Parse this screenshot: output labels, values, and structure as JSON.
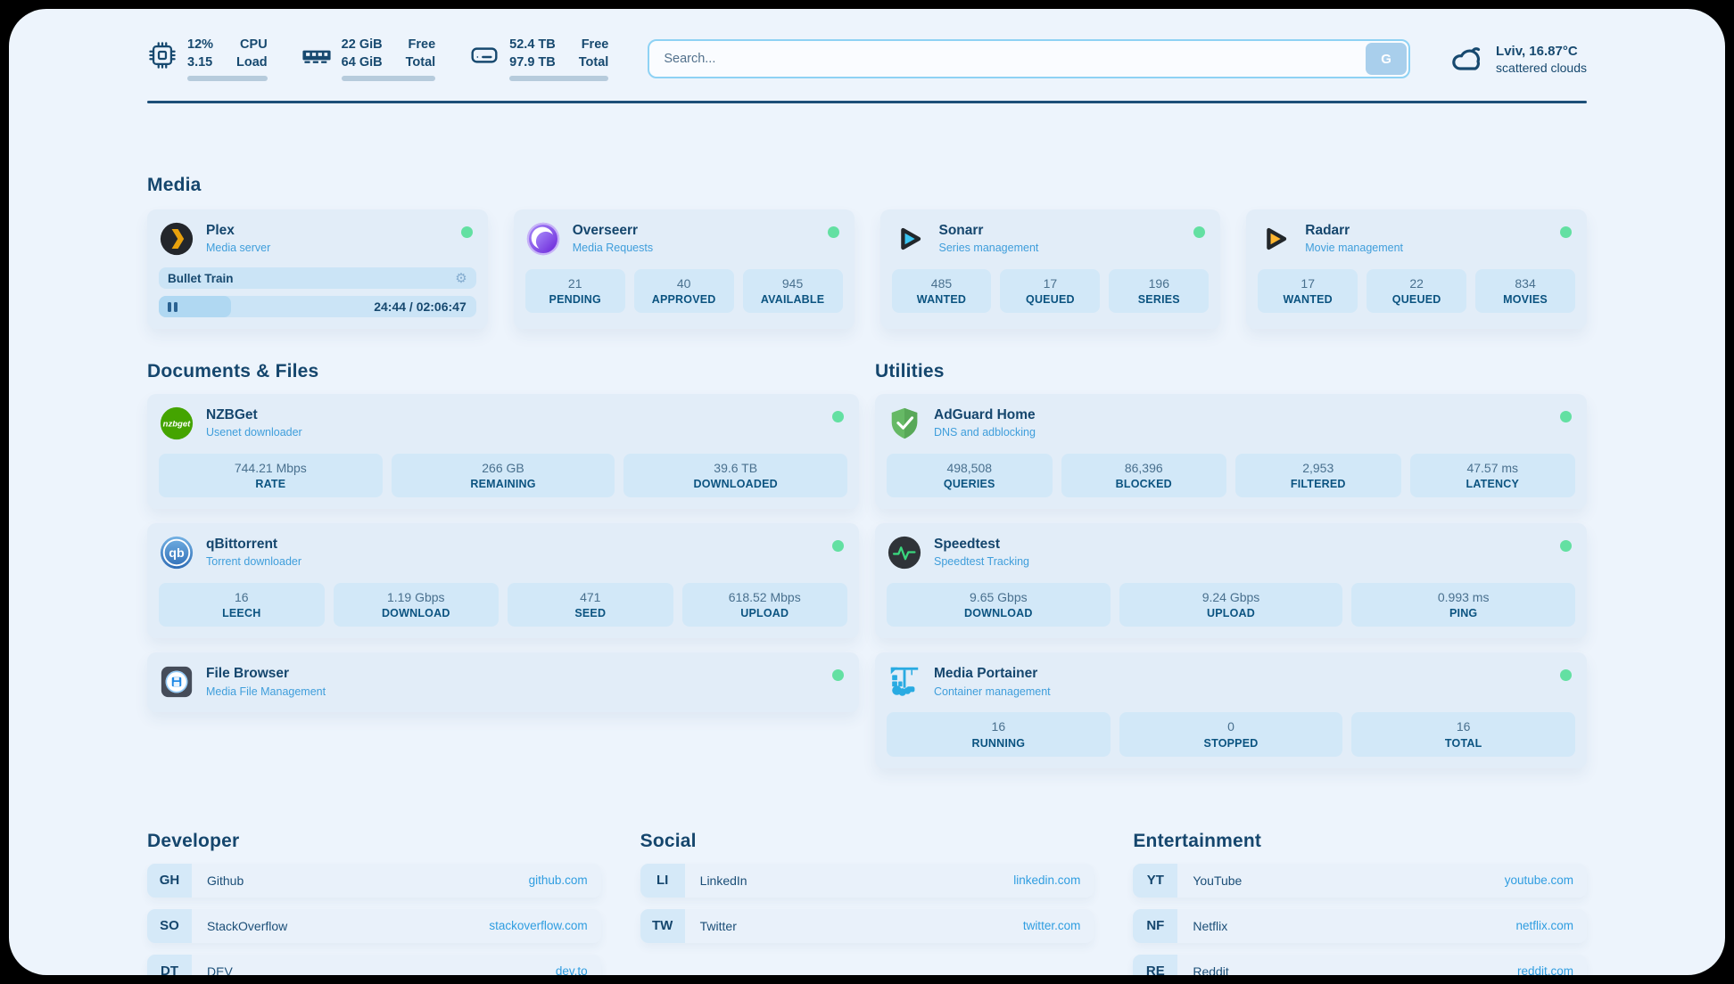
{
  "colors": {
    "page_background": "#edf4fc",
    "accent_dark": "#17496f",
    "status_online_green": "#63e0a2",
    "link_blue": "#2f9de0",
    "subtitle_blue": "#3f9edb"
  },
  "topbar": {
    "resources": [
      {
        "icon": "cpu-icon",
        "value_top": "12%",
        "label_top": "CPU",
        "value_bottom": "3.15",
        "label_bottom": "Load",
        "progress_pct": 12
      },
      {
        "icon": "memory-icon",
        "value_top": "22 GiB",
        "label_top": "Free",
        "value_bottom": "64 GiB",
        "label_bottom": "Total",
        "progress_pct": 66
      },
      {
        "icon": "disk-icon",
        "value_top": "52.4 TB",
        "label_top": "Free",
        "value_bottom": "97.9 TB",
        "label_bottom": "Total",
        "progress_pct": 46
      }
    ],
    "search": {
      "placeholder": "Search...",
      "button": "G"
    },
    "weather": {
      "icon": "cloud-icon",
      "location": "Lviv, 16.87°C",
      "condition": "scattered clouds"
    }
  },
  "media": {
    "title": "Media",
    "cards": [
      {
        "icon": "plex-icon",
        "name": "Plex",
        "subtitle": "Media server",
        "status": "online",
        "player": {
          "title": "Bullet Train",
          "time": "24:44 / 02:06:47",
          "progress_pct": 20
        }
      },
      {
        "icon": "overseerr-icon",
        "name": "Overseerr",
        "subtitle": "Media Requests",
        "status": "online",
        "stats": [
          {
            "value": "21",
            "label": "PENDING"
          },
          {
            "value": "40",
            "label": "APPROVED"
          },
          {
            "value": "945",
            "label": "AVAILABLE"
          }
        ]
      },
      {
        "icon": "sonarr-icon",
        "name": "Sonarr",
        "subtitle": "Series management",
        "status": "online",
        "stats": [
          {
            "value": "485",
            "label": "WANTED"
          },
          {
            "value": "17",
            "label": "QUEUED"
          },
          {
            "value": "196",
            "label": "SERIES"
          }
        ]
      },
      {
        "icon": "radarr-icon",
        "name": "Radarr",
        "subtitle": "Movie management",
        "status": "online",
        "stats": [
          {
            "value": "17",
            "label": "WANTED"
          },
          {
            "value": "22",
            "label": "QUEUED"
          },
          {
            "value": "834",
            "label": "MOVIES"
          }
        ]
      }
    ]
  },
  "documents": {
    "title": "Documents & Files",
    "cards": [
      {
        "icon": "nzbget-icon",
        "name": "NZBGet",
        "subtitle": "Usenet downloader",
        "status": "online",
        "stats": [
          {
            "value": "744.21 Mbps",
            "label": "RATE"
          },
          {
            "value": "266 GB",
            "label": "REMAINING"
          },
          {
            "value": "39.6 TB",
            "label": "DOWNLOADED"
          }
        ]
      },
      {
        "icon": "qbittorrent-icon",
        "name": "qBittorrent",
        "subtitle": "Torrent downloader",
        "status": "online",
        "stats": [
          {
            "value": "16",
            "label": "LEECH"
          },
          {
            "value": "1.19 Gbps",
            "label": "DOWNLOAD"
          },
          {
            "value": "471",
            "label": "SEED"
          },
          {
            "value": "618.52 Mbps",
            "label": "UPLOAD"
          }
        ]
      },
      {
        "icon": "filebrowser-icon",
        "name": "File Browser",
        "subtitle": "Media File Management",
        "status": "online"
      }
    ]
  },
  "utilities": {
    "title": "Utilities",
    "cards": [
      {
        "icon": "adguard-icon",
        "name": "AdGuard Home",
        "subtitle": "DNS and adblocking",
        "status": "online",
        "stats": [
          {
            "value": "498,508",
            "label": "QUERIES"
          },
          {
            "value": "86,396",
            "label": "BLOCKED"
          },
          {
            "value": "2,953",
            "label": "FILTERED"
          },
          {
            "value": "47.57 ms",
            "label": "LATENCY"
          }
        ]
      },
      {
        "icon": "speedtest-icon",
        "name": "Speedtest",
        "subtitle": "Speedtest Tracking",
        "status": "online",
        "stats": [
          {
            "value": "9.65 Gbps",
            "label": "DOWNLOAD"
          },
          {
            "value": "9.24 Gbps",
            "label": "UPLOAD"
          },
          {
            "value": "0.993 ms",
            "label": "PING"
          }
        ]
      },
      {
        "icon": "portainer-icon",
        "name": "Media Portainer",
        "subtitle": "Container management",
        "status": "online",
        "stats": [
          {
            "value": "16",
            "label": "RUNNING"
          },
          {
            "value": "0",
            "label": "STOPPED"
          },
          {
            "value": "16",
            "label": "TOTAL"
          }
        ]
      }
    ]
  },
  "bookmarks": {
    "groups": [
      {
        "title": "Developer",
        "items": [
          {
            "abbr": "GH",
            "name": "Github",
            "url": "github.com"
          },
          {
            "abbr": "SO",
            "name": "StackOverflow",
            "url": "stackoverflow.com"
          },
          {
            "abbr": "DT",
            "name": "DEV",
            "url": "dev.to"
          }
        ]
      },
      {
        "title": "Social",
        "items": [
          {
            "abbr": "LI",
            "name": "LinkedIn",
            "url": "linkedin.com"
          },
          {
            "abbr": "TW",
            "name": "Twitter",
            "url": "twitter.com"
          }
        ]
      },
      {
        "title": "Entertainment",
        "items": [
          {
            "abbr": "YT",
            "name": "YouTube",
            "url": "youtube.com"
          },
          {
            "abbr": "NF",
            "name": "Netflix",
            "url": "netflix.com"
          },
          {
            "abbr": "RE",
            "name": "Reddit",
            "url": "reddit.com"
          }
        ]
      }
    ]
  }
}
